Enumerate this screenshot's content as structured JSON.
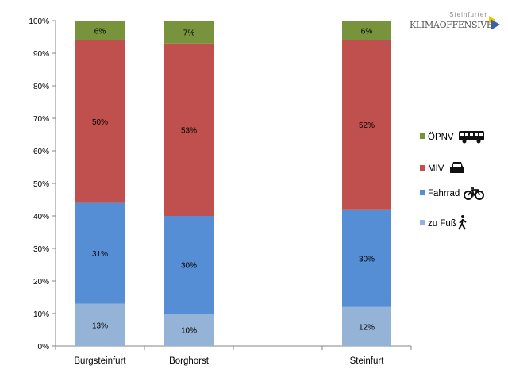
{
  "logo": {
    "sub": "Steinfurter",
    "main": "KLIMAOFFENSIVE"
  },
  "chart_data": {
    "type": "bar",
    "stacked": true,
    "categories": [
      "Burgsteinfurt",
      "Borghorst",
      "",
      "Steinfurt"
    ],
    "series": [
      {
        "name": "zu Fuß",
        "color": "#95b3d7",
        "icon": "pedestrian-icon",
        "values": [
          13,
          10,
          null,
          12
        ],
        "labels": [
          "13%",
          "10%",
          "",
          "12%"
        ]
      },
      {
        "name": "Fahrrad",
        "color": "#558ed5",
        "icon": "bicycle-icon",
        "values": [
          31,
          30,
          null,
          30
        ],
        "labels": [
          "31%",
          "30%",
          "",
          "30%"
        ]
      },
      {
        "name": "MIV",
        "color": "#c0504d",
        "icon": "car-icon",
        "values": [
          50,
          53,
          null,
          52
        ],
        "labels": [
          "50%",
          "53%",
          "",
          "52%"
        ]
      },
      {
        "name": "ÖPNV",
        "color": "#77933c",
        "icon": "bus-icon",
        "values": [
          6,
          7,
          null,
          6
        ],
        "labels": [
          "6%",
          "7%",
          "",
          "6%"
        ]
      }
    ],
    "yticks": [
      "0%",
      "10%",
      "20%",
      "30%",
      "40%",
      "50%",
      "60%",
      "70%",
      "80%",
      "90%",
      "100%"
    ],
    "ylim": [
      0,
      100
    ],
    "legend": "right",
    "grid": false
  }
}
